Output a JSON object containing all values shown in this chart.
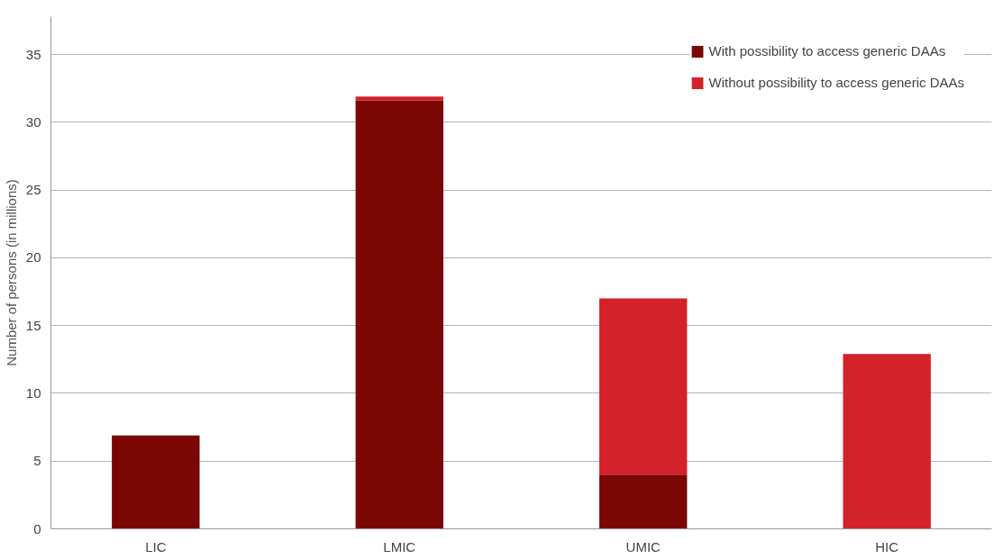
{
  "chart_data": {
    "type": "bar",
    "stacked": true,
    "ylabel": "Number of persons (in millions)",
    "categories": [
      "LIC",
      "LMIC",
      "UMIC",
      "HIC"
    ],
    "series": [
      {
        "name": "With possibility to access generic DAAs",
        "color": "#7a0606",
        "values": [
          6.9,
          31.6,
          4.0,
          0
        ]
      },
      {
        "name": "Without possibility to access generic DAAs",
        "color": "#d4212a",
        "values": [
          0,
          0.3,
          13.0,
          12.9
        ]
      }
    ],
    "ylim": [
      0,
      37.8
    ],
    "yticks": [
      0,
      5,
      10,
      15,
      20,
      25,
      30,
      35
    ],
    "grid": "y",
    "legend": "top right"
  }
}
